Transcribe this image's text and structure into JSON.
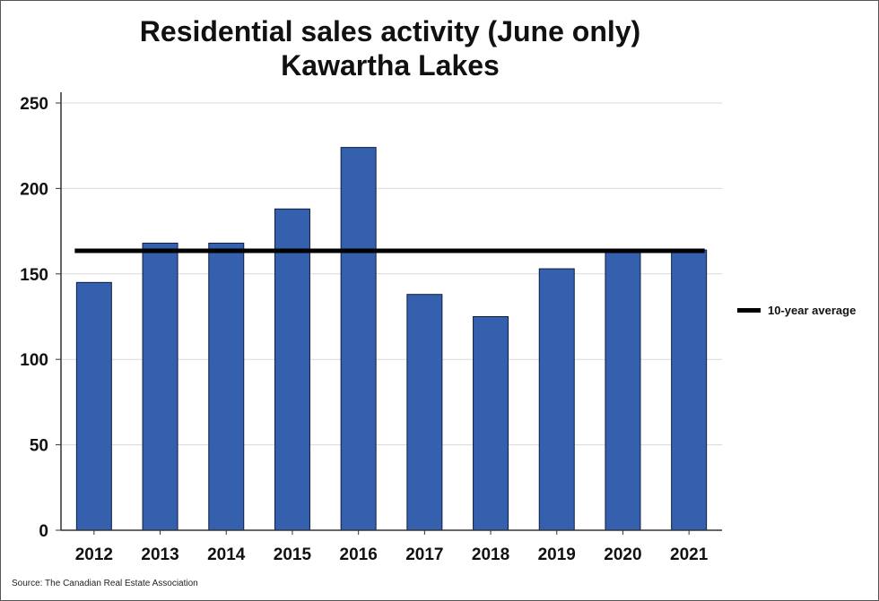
{
  "chart_data": {
    "type": "bar",
    "title": "Residential sales activity (June only)",
    "subtitle": "Kawartha Lakes",
    "categories": [
      "2012",
      "2013",
      "2014",
      "2015",
      "2016",
      "2017",
      "2018",
      "2019",
      "2020",
      "2021"
    ],
    "values": [
      145,
      168,
      168,
      188,
      224,
      138,
      125,
      153,
      163,
      164
    ],
    "reference_line": {
      "name": "10-year average",
      "value": 163.5
    },
    "ylim": [
      0,
      250
    ],
    "yticks": [
      0,
      50,
      100,
      150,
      200,
      250
    ],
    "grid": true,
    "legend_position": "right",
    "colors": {
      "bar": "#3560ad",
      "bar_edge": "#0d1e45",
      "average_line": "#000000",
      "grid": "#d9d9d9"
    }
  },
  "source": "Source: The Canadian Real Estate Association"
}
